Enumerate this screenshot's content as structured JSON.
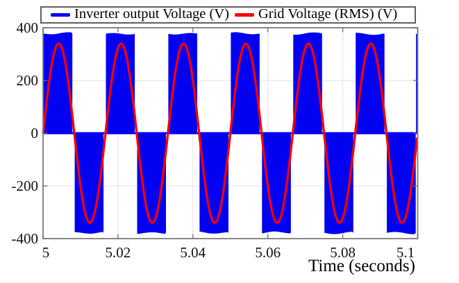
{
  "chart_data": {
    "type": "line",
    "title": "",
    "xlabel": "Time (seconds)",
    "ylabel": "",
    "xlim": [
      5,
      5.1
    ],
    "ylim": [
      -400,
      400
    ],
    "grid": true,
    "legend_position": "top-full-width",
    "xticks": {
      "values": [
        5,
        5.02,
        5.04,
        5.06,
        5.08,
        5.1
      ],
      "labels": [
        "5",
        "5.02",
        "5.04",
        "5.06",
        "5.08",
        "5.1"
      ]
    },
    "yticks": {
      "values": [
        400,
        200,
        0,
        -200,
        -400
      ],
      "labels": [
        "400",
        "200",
        "0",
        "-200",
        "-400"
      ]
    },
    "series": [
      {
        "name": "Inverter output Voltage (V)",
        "color": "#0202F0",
        "type": "pwm_square_envelope",
        "frequency_hz": 60,
        "amplitude_v": 378,
        "baseline_v": 0,
        "cycles_shown": 6
      },
      {
        "name": "Grid Voltage (RMS) (V)",
        "color": "#F50000",
        "type": "sine",
        "frequency_hz": 60,
        "amplitude_v": 340,
        "phase_deg": 0
      }
    ]
  },
  "colors": {
    "background": "#FFFFFF",
    "grid": "#E8E8E8",
    "axis_frame": "#7A7A7A",
    "tick_mark": "#6E6E6E",
    "tick_text": "#111111",
    "legend_border": "#5F5F5F"
  }
}
